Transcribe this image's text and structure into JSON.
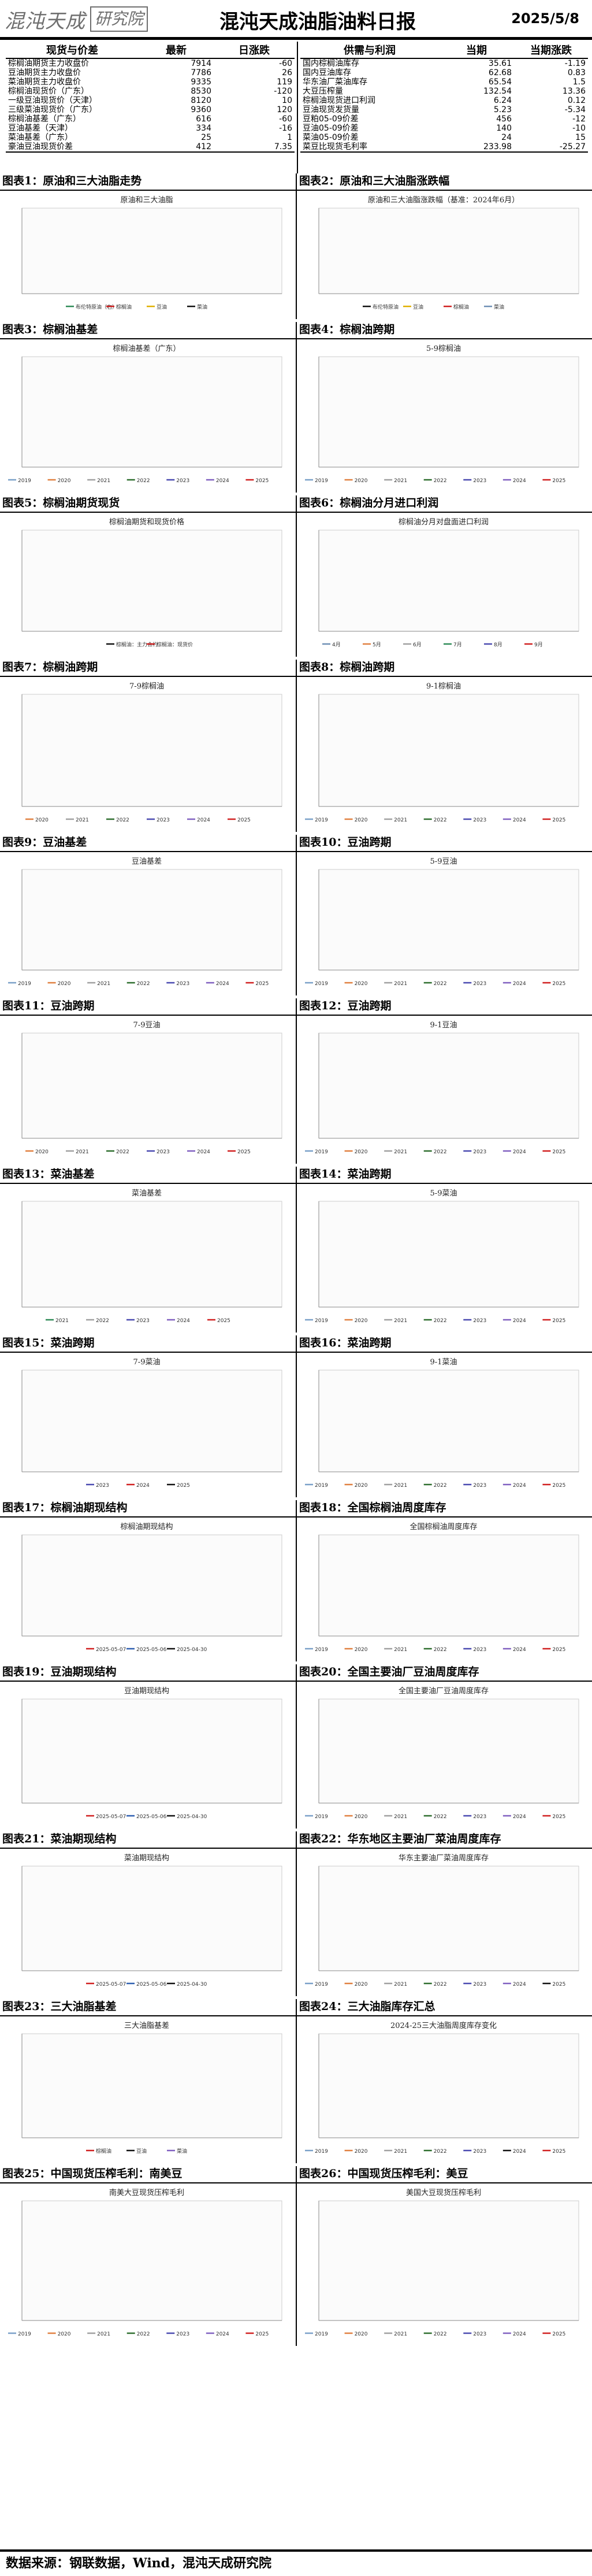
{
  "header": {
    "logo_name": "混沌天成",
    "logo_inst": "研究院",
    "title": "混沌天成油脂油料日报",
    "date": "2025/5/8"
  },
  "table_left": {
    "headers": [
      "现货与价差",
      "最新",
      "日涨跌"
    ],
    "rows": [
      [
        "棕榈油期货主力收盘价",
        "7914",
        "-60"
      ],
      [
        "豆油期货主力收盘价",
        "7786",
        "26"
      ],
      [
        "菜油期货主力收盘价",
        "9335",
        "119"
      ],
      [
        "棕榈油现货价（广东）",
        "8530",
        "-120"
      ],
      [
        "一级豆油现货价（天津）",
        "8120",
        "10"
      ],
      [
        "三级菜油现货价（广东）",
        "9360",
        "120"
      ],
      [
        "棕榈油基差（广东）",
        "616",
        "-60"
      ],
      [
        "豆油基差（天津）",
        "334",
        "-16"
      ],
      [
        "菜油基差（广东）",
        "25",
        "1"
      ],
      [
        "豪油豆油现货价差",
        "412",
        "7.35"
      ]
    ]
  },
  "table_right": {
    "headers": [
      "供需与利润",
      "当期",
      "当期涨跌"
    ],
    "rows": [
      [
        "国内棕榈油库存",
        "35.61",
        "-1.19"
      ],
      [
        "国内豆油库存",
        "62.68",
        "0.83"
      ],
      [
        "华东油厂菜油库存",
        "65.54",
        "1.5"
      ],
      [
        "大豆压榨量",
        "132.54",
        "13.36"
      ],
      [
        "棕榈油现货进口利润",
        "6.24",
        "0.12"
      ],
      [
        "豆油现货发货量",
        "5.23",
        "-5.34"
      ],
      [
        "豆粕05-09价差",
        "456",
        "-12"
      ],
      [
        "豆油05-09价差",
        "140",
        "-10"
      ],
      [
        "菜油05-09价差",
        "24",
        "15"
      ],
      [
        "菜豆比现货毛利率",
        "233.98",
        "-25.27"
      ]
    ]
  },
  "panels": [
    {
      "label": "图表1：原油和三大油脂走势",
      "title": "原油和三大油脂",
      "legend": [
        "布伦特原油（右）",
        "棕榈油",
        "豆油",
        "菜油"
      ],
      "colors": [
        "#2e8b57",
        "#d02020",
        "#e0b000",
        "#111111"
      ]
    },
    {
      "label": "图表2：原油和三大油脂涨跌幅",
      "title": "原油和三大油脂涨跌幅（基准：2024年6月）",
      "legend": [
        "布伦特原油",
        "豆油",
        "棕榈油",
        "菜油"
      ],
      "colors": [
        "#111111",
        "#e0b000",
        "#d02020",
        "#6e8fb5"
      ]
    },
    {
      "label": "图表3：棕榈油基差",
      "title": "棕榈油基差（广东）",
      "legend": [
        "2019",
        "2020",
        "2021",
        "2022",
        "2023",
        "2024",
        "2025"
      ],
      "colors": [
        "#7aa0c8",
        "#e08040",
        "#a0a0a0",
        "#2e6e2e",
        "#4a4ab0",
        "#8060c0",
        "#d02020"
      ]
    },
    {
      "label": "图表4：棕榈油跨期",
      "title": "5-9棕榈油",
      "legend": [
        "2019",
        "2020",
        "2021",
        "2022",
        "2023",
        "2024",
        "2025"
      ],
      "colors": [
        "#7aa0c8",
        "#e08040",
        "#a0a0a0",
        "#2e6e2e",
        "#4a4ab0",
        "#8060c0",
        "#d02020"
      ]
    },
    {
      "label": "图表5：棕榈油期货现货",
      "title": "棕榈油期货和现货价格",
      "legend": [
        "棕榈油：主力合约",
        "棕榈油：现货价"
      ],
      "colors": [
        "#111111",
        "#d02020"
      ]
    },
    {
      "label": "图表6：棕榈油分月进口利润",
      "title": "棕榈油分月对盘面进口利润",
      "legend": [
        "4月",
        "5月",
        "6月",
        "7月",
        "8月",
        "9月"
      ],
      "colors": [
        "#6e8fb5",
        "#e08040",
        "#a0a0a0",
        "#2e8b57",
        "#4a4ab0",
        "#d02020"
      ]
    },
    {
      "label": "图表7：棕榈油跨期",
      "title": "7-9棕榈油",
      "legend": [
        "2020",
        "2021",
        "2022",
        "2023",
        "2024",
        "2025"
      ],
      "colors": [
        "#e08040",
        "#a0a0a0",
        "#2e6e2e",
        "#4a4ab0",
        "#8060c0",
        "#d02020"
      ]
    },
    {
      "label": "图表8：棕榈油跨期",
      "title": "9-1棕榈油",
      "legend": [
        "2019",
        "2020",
        "2021",
        "2022",
        "2023",
        "2024",
        "2025"
      ],
      "colors": [
        "#7aa0c8",
        "#e08040",
        "#a0a0a0",
        "#2e6e2e",
        "#4a4ab0",
        "#8060c0",
        "#d02020"
      ]
    },
    {
      "label": "图表9：豆油基差",
      "title": "豆油基差",
      "legend": [
        "2019",
        "2020",
        "2021",
        "2022",
        "2023",
        "2024",
        "2025"
      ],
      "colors": [
        "#7aa0c8",
        "#e08040",
        "#a0a0a0",
        "#2e6e2e",
        "#4a4ab0",
        "#8060c0",
        "#d02020"
      ]
    },
    {
      "label": "图表10：豆油跨期",
      "title": "5-9豆油",
      "legend": [
        "2019",
        "2020",
        "2021",
        "2022",
        "2023",
        "2024",
        "2025"
      ],
      "colors": [
        "#7aa0c8",
        "#e08040",
        "#a0a0a0",
        "#2e6e2e",
        "#4a4ab0",
        "#8060c0",
        "#d02020"
      ]
    },
    {
      "label": "图表11：豆油跨期",
      "title": "7-9豆油",
      "legend": [
        "2020",
        "2021",
        "2022",
        "2023",
        "2024",
        "2025"
      ],
      "colors": [
        "#e08040",
        "#a0a0a0",
        "#2e6e2e",
        "#4a4ab0",
        "#8060c0",
        "#d02020"
      ]
    },
    {
      "label": "图表12：豆油跨期",
      "title": "9-1豆油",
      "legend": [
        "2019",
        "2020",
        "2021",
        "2022",
        "2023",
        "2024",
        "2025"
      ],
      "colors": [
        "#7aa0c8",
        "#e08040",
        "#a0a0a0",
        "#2e6e2e",
        "#4a4ab0",
        "#8060c0",
        "#d02020"
      ]
    },
    {
      "label": "图表13：菜油基差",
      "title": "菜油基差",
      "legend": [
        "2021",
        "2022",
        "2023",
        "2024",
        "2025"
      ],
      "colors": [
        "#2e8b57",
        "#a0a0a0",
        "#4a4ab0",
        "#8060c0",
        "#d02020"
      ]
    },
    {
      "label": "图表14：菜油跨期",
      "title": "5-9菜油",
      "legend": [
        "2019",
        "2020",
        "2021",
        "2022",
        "2023",
        "2024",
        "2025"
      ],
      "colors": [
        "#7aa0c8",
        "#e08040",
        "#a0a0a0",
        "#2e6e2e",
        "#4a4ab0",
        "#8060c0",
        "#d02020"
      ]
    },
    {
      "label": "图表15：菜油跨期",
      "title": "7-9菜油",
      "legend": [
        "2023",
        "2024",
        "2025"
      ],
      "colors": [
        "#4a4ab0",
        "#d02020",
        "#111111"
      ]
    },
    {
      "label": "图表16：菜油跨期",
      "title": "9-1菜油",
      "legend": [
        "2019",
        "2020",
        "2021",
        "2022",
        "2023",
        "2024",
        "2025"
      ],
      "colors": [
        "#7aa0c8",
        "#e08040",
        "#a0a0a0",
        "#2e6e2e",
        "#4a4ab0",
        "#8060c0",
        "#d02020"
      ]
    },
    {
      "label": "图表17：棕榈油期现结构",
      "title": "棕榈油期现结构",
      "legend": [
        "2025-05-07",
        "2025-05-06",
        "2025-04-30"
      ],
      "colors": [
        "#d02020",
        "#2e5fb0",
        "#111111"
      ]
    },
    {
      "label": "图表18：全国棕榈油周度库存",
      "title": "全国棕榈油周度库存",
      "legend": [
        "2019",
        "2020",
        "2021",
        "2022",
        "2023",
        "2024",
        "2025"
      ],
      "colors": [
        "#7aa0c8",
        "#e08040",
        "#a0a0a0",
        "#2e6e2e",
        "#4a4ab0",
        "#8060c0",
        "#d02020"
      ]
    },
    {
      "label": "图表19：豆油期现结构",
      "title": "豆油期现结构",
      "legend": [
        "2025-05-07",
        "2025-05-06",
        "2025-04-30"
      ],
      "colors": [
        "#d02020",
        "#2e5fb0",
        "#111111"
      ]
    },
    {
      "label": "图表20：全国主要油厂豆油周度库存",
      "title": "全国主要油厂豆油周度库存",
      "legend": [
        "2019",
        "2020",
        "2021",
        "2022",
        "2023",
        "2024",
        "2025"
      ],
      "colors": [
        "#7aa0c8",
        "#e08040",
        "#a0a0a0",
        "#2e6e2e",
        "#4a4ab0",
        "#8060c0",
        "#d02020"
      ]
    },
    {
      "label": "图表21：菜油期现结构",
      "title": "菜油期现结构",
      "legend": [
        "2025-05-07",
        "2025-05-06",
        "2025-04-30"
      ],
      "colors": [
        "#d02020",
        "#2e5fb0",
        "#111111"
      ]
    },
    {
      "label": "图表22：华东地区主要油厂菜油周度库存",
      "title": "华东主要油厂菜油周度库存",
      "legend": [
        "2019",
        "2020",
        "2021",
        "2022",
        "2023",
        "2024",
        "2025"
      ],
      "colors": [
        "#7aa0c8",
        "#e08040",
        "#a0a0a0",
        "#2e6e2e",
        "#4a4ab0",
        "#8060c0",
        "#111111"
      ]
    },
    {
      "label": "图表23：三大油脂基差",
      "title": "三大油脂基差",
      "legend": [
        "棕榈油",
        "豆油",
        "菜油"
      ],
      "colors": [
        "#d02020",
        "#111111",
        "#8060c0"
      ]
    },
    {
      "label": "图表24：三大油脂库存汇总",
      "title": "2024-25三大油脂周度库存变化",
      "legend": [
        "2019",
        "2020",
        "2021",
        "2022",
        "2023",
        "2024",
        "2025"
      ],
      "colors": [
        "#7aa0c8",
        "#e08040",
        "#a0a0a0",
        "#2e6e2e",
        "#4a4ab0",
        "#111111",
        "#d02020"
      ]
    },
    {
      "label": "图表25：中国现货压榨毛利：南美豆",
      "title": "南美大豆现货压榨毛利",
      "legend": [
        "2019",
        "2020",
        "2021",
        "2022",
        "2023",
        "2024",
        "2025"
      ],
      "colors": [
        "#7aa0c8",
        "#e08040",
        "#a0a0a0",
        "#2e6e2e",
        "#4a4ab0",
        "#8060c0",
        "#d02020"
      ]
    },
    {
      "label": "图表26：中国现货压榨毛利：美豆",
      "title": "美国大豆现货压榨毛利",
      "legend": [
        "2019",
        "2020",
        "2021",
        "2022",
        "2023",
        "2024",
        "2025"
      ],
      "colors": [
        "#7aa0c8",
        "#e08040",
        "#a0a0a0",
        "#2e6e2e",
        "#4a4ab0",
        "#8060c0",
        "#d02020"
      ]
    }
  ],
  "footer": "数据来源：钢联数据，Wind，混沌天成研究院"
}
